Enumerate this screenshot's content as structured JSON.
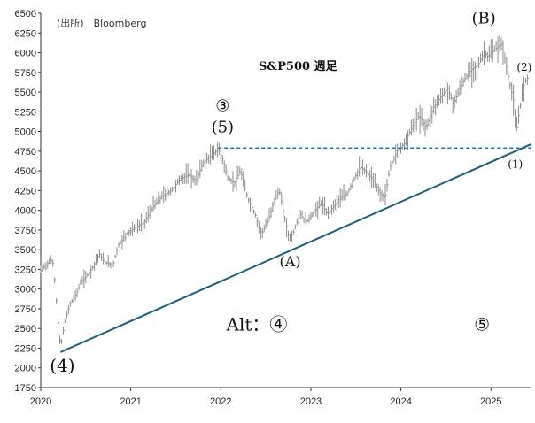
{
  "source": "(出所)　Bloomberg",
  "chart_data": {
    "type": "ohlc",
    "title": "S&P500 週足",
    "ylim": [
      1750,
      6500
    ],
    "yticks": [
      1750,
      2000,
      2250,
      2500,
      2750,
      3000,
      3250,
      3500,
      3750,
      4000,
      4250,
      4500,
      4750,
      5000,
      5250,
      5500,
      5750,
      6000,
      6250,
      6500
    ],
    "xlim": [
      2020.0,
      2025.45
    ],
    "xticks": [
      "2020",
      "2021",
      "2022",
      "2023",
      "2024",
      "2025"
    ],
    "colors": {
      "price": "#8c8c8c",
      "trend": "#1f5f7a",
      "hline": "#1f6fb0"
    },
    "price_path": [
      [
        2020.0,
        3240
      ],
      [
        2020.08,
        3330
      ],
      [
        2020.13,
        3380
      ],
      [
        2020.16,
        3050
      ],
      [
        2020.19,
        2600
      ],
      [
        2020.22,
        2250
      ],
      [
        2020.26,
        2550
      ],
      [
        2020.32,
        2800
      ],
      [
        2020.4,
        2950
      ],
      [
        2020.45,
        3100
      ],
      [
        2020.5,
        3150
      ],
      [
        2020.58,
        3280
      ],
      [
        2020.65,
        3450
      ],
      [
        2020.7,
        3350
      ],
      [
        2020.8,
        3300
      ],
      [
        2020.86,
        3550
      ],
      [
        2020.95,
        3700
      ],
      [
        2021.05,
        3780
      ],
      [
        2021.15,
        3850
      ],
      [
        2021.25,
        4050
      ],
      [
        2021.35,
        4180
      ],
      [
        2021.45,
        4250
      ],
      [
        2021.55,
        4400
      ],
      [
        2021.65,
        4450
      ],
      [
        2021.72,
        4360
      ],
      [
        2021.8,
        4600
      ],
      [
        2021.9,
        4700
      ],
      [
        2021.97,
        4780
      ],
      [
        2022.02,
        4650
      ],
      [
        2022.08,
        4400
      ],
      [
        2022.15,
        4350
      ],
      [
        2022.22,
        4500
      ],
      [
        2022.3,
        4150
      ],
      [
        2022.38,
        3950
      ],
      [
        2022.45,
        3700
      ],
      [
        2022.52,
        3850
      ],
      [
        2022.6,
        4150
      ],
      [
        2022.65,
        4250
      ],
      [
        2022.7,
        3950
      ],
      [
        2022.76,
        3640
      ],
      [
        2022.8,
        3700
      ],
      [
        2022.88,
        3950
      ],
      [
        2022.95,
        3850
      ],
      [
        2023.05,
        4000
      ],
      [
        2023.12,
        4100
      ],
      [
        2023.18,
        3950
      ],
      [
        2023.25,
        4050
      ],
      [
        2023.32,
        4150
      ],
      [
        2023.4,
        4200
      ],
      [
        2023.48,
        4400
      ],
      [
        2023.55,
        4550
      ],
      [
        2023.6,
        4500
      ],
      [
        2023.68,
        4400
      ],
      [
        2023.75,
        4250
      ],
      [
        2023.82,
        4150
      ],
      [
        2023.88,
        4550
      ],
      [
        2023.96,
        4750
      ],
      [
        2024.04,
        4850
      ],
      [
        2024.12,
        5050
      ],
      [
        2024.2,
        5200
      ],
      [
        2024.28,
        5050
      ],
      [
        2024.36,
        5300
      ],
      [
        2024.45,
        5450
      ],
      [
        2024.52,
        5550
      ],
      [
        2024.58,
        5350
      ],
      [
        2024.62,
        5450
      ],
      [
        2024.7,
        5650
      ],
      [
        2024.78,
        5780
      ],
      [
        2024.86,
        5850
      ],
      [
        2024.92,
        6000
      ],
      [
        2024.97,
        5950
      ],
      [
        2025.05,
        6050
      ],
      [
        2025.12,
        6110
      ],
      [
        2025.16,
        5900
      ],
      [
        2025.2,
        5650
      ],
      [
        2025.25,
        5400
      ],
      [
        2025.28,
        4980
      ],
      [
        2025.32,
        5300
      ],
      [
        2025.37,
        5620
      ],
      [
        2025.42,
        5700
      ]
    ],
    "trendline": {
      "start": [
        2020.22,
        2200
      ],
      "end": [
        2025.45,
        4840
      ]
    },
    "hline": {
      "y": 4790,
      "x_start": 2021.97,
      "x_end": 2025.5
    },
    "annotations": [
      {
        "text": "(4)",
        "x": 2020.22,
        "y": 2200,
        "anchor": "above-right"
      },
      {
        "text": "③",
        "x": 2022.02,
        "y": 5260,
        "anchor": "center"
      },
      {
        "text": "(5)",
        "x": 2022.02,
        "y": 4990,
        "anchor": "center"
      },
      {
        "text": "(A)",
        "x": 2022.77,
        "y": 3290,
        "anchor": "center"
      },
      {
        "text": "(B)",
        "x": 2024.92,
        "y": 6370,
        "anchor": "center"
      },
      {
        "text": "(2)",
        "x": 2025.37,
        "y": 5770,
        "anchor": "center"
      },
      {
        "text": "(1)",
        "x": 2025.27,
        "y": 4540,
        "anchor": "center"
      },
      {
        "text": "Alt：④",
        "x": 2022.4,
        "y": 2475,
        "anchor": "center"
      },
      {
        "text": "⑤",
        "x": 2024.9,
        "y": 2475,
        "anchor": "center"
      }
    ]
  }
}
